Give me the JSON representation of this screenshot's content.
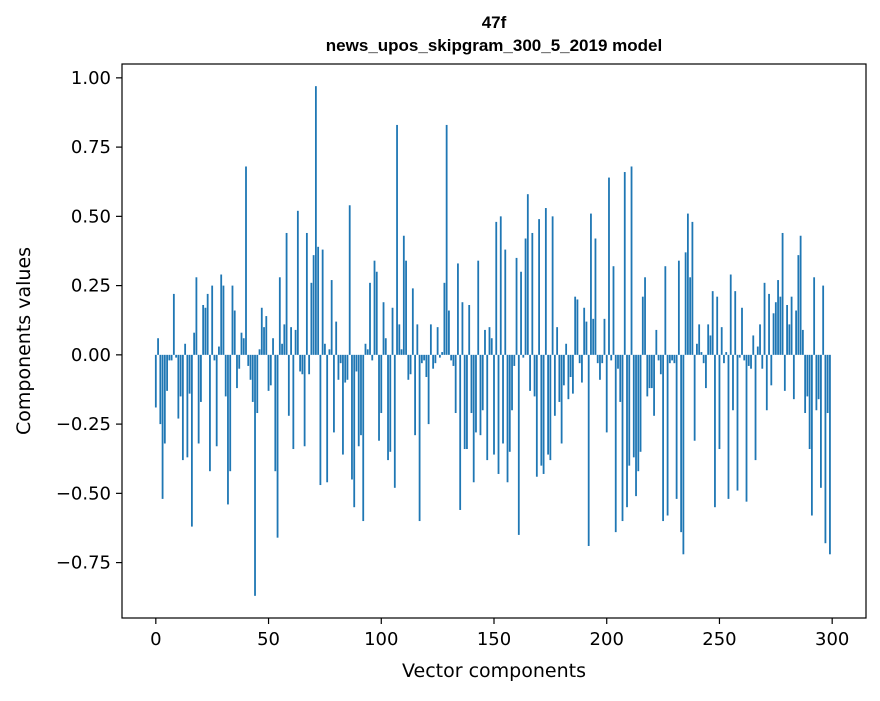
{
  "chart_data": {
    "type": "bar",
    "title": "47f",
    "subtitle": "news_upos_skipgram_300_5_2019 model",
    "xlabel": "Vector components",
    "ylabel": "Components values",
    "xlim": [
      -15,
      315
    ],
    "ylim": [
      -0.95,
      1.05
    ],
    "xticks": [
      0,
      50,
      100,
      150,
      200,
      250,
      300
    ],
    "xtick_labels": [
      "0",
      "50",
      "100",
      "150",
      "200",
      "250",
      "300"
    ],
    "yticks": [
      1.0,
      0.75,
      0.5,
      0.25,
      0.0,
      -0.25,
      -0.5,
      -0.75
    ],
    "ytick_labels": [
      "1.00",
      "0.75",
      "0.50",
      "0.25",
      "0.00",
      "−0.25",
      "−0.50",
      "−0.75"
    ],
    "grid": false,
    "colors": {
      "bar": "#1f77b4",
      "axis": "#000000",
      "background": "#ffffff"
    },
    "x": [
      0,
      1,
      2,
      3,
      4,
      5,
      6,
      7,
      8,
      9,
      10,
      11,
      12,
      13,
      14,
      15,
      16,
      17,
      18,
      19,
      20,
      21,
      22,
      23,
      24,
      25,
      26,
      27,
      28,
      29,
      30,
      31,
      32,
      33,
      34,
      35,
      36,
      37,
      38,
      39,
      40,
      41,
      42,
      43,
      44,
      45,
      46,
      47,
      48,
      49,
      50,
      51,
      52,
      53,
      54,
      55,
      56,
      57,
      58,
      59,
      60,
      61,
      62,
      63,
      64,
      65,
      66,
      67,
      68,
      69,
      70,
      71,
      72,
      73,
      74,
      75,
      76,
      77,
      78,
      79,
      80,
      81,
      82,
      83,
      84,
      85,
      86,
      87,
      88,
      89,
      90,
      91,
      92,
      93,
      94,
      95,
      96,
      97,
      98,
      99,
      100,
      101,
      102,
      103,
      104,
      105,
      106,
      107,
      108,
      109,
      110,
      111,
      112,
      113,
      114,
      115,
      116,
      117,
      118,
      119,
      120,
      121,
      122,
      123,
      124,
      125,
      126,
      127,
      128,
      129,
      130,
      131,
      132,
      133,
      134,
      135,
      136,
      137,
      138,
      139,
      140,
      141,
      142,
      143,
      144,
      145,
      146,
      147,
      148,
      149,
      150,
      151,
      152,
      153,
      154,
      155,
      156,
      157,
      158,
      159,
      160,
      161,
      162,
      163,
      164,
      165,
      166,
      167,
      168,
      169,
      170,
      171,
      172,
      173,
      174,
      175,
      176,
      177,
      178,
      179,
      180,
      181,
      182,
      183,
      184,
      185,
      186,
      187,
      188,
      189,
      190,
      191,
      192,
      193,
      194,
      195,
      196,
      197,
      198,
      199,
      200,
      201,
      202,
      203,
      204,
      205,
      206,
      207,
      208,
      209,
      210,
      211,
      212,
      213,
      214,
      215,
      216,
      217,
      218,
      219,
      220,
      221,
      222,
      223,
      224,
      225,
      226,
      227,
      228,
      229,
      230,
      231,
      232,
      233,
      234,
      235,
      236,
      237,
      238,
      239,
      240,
      241,
      242,
      243,
      244,
      245,
      246,
      247,
      248,
      249,
      250,
      251,
      252,
      253,
      254,
      255,
      256,
      257,
      258,
      259,
      260,
      261,
      262,
      263,
      264,
      265,
      266,
      267,
      268,
      269,
      270,
      271,
      272,
      273,
      274,
      275,
      276,
      277,
      278,
      279,
      280,
      281,
      282,
      283,
      284,
      285,
      286,
      287,
      288,
      289,
      290,
      291,
      292,
      293,
      294,
      295,
      296,
      297,
      298,
      299
    ],
    "values": [
      -0.19,
      0.06,
      -0.25,
      -0.52,
      -0.32,
      -0.13,
      -0.02,
      -0.02,
      0.22,
      -0.01,
      -0.23,
      -0.15,
      -0.38,
      0.04,
      -0.37,
      -0.14,
      -0.62,
      0.08,
      0.28,
      -0.32,
      -0.17,
      0.18,
      0.17,
      0.22,
      -0.42,
      0.25,
      -0.02,
      -0.33,
      0.03,
      0.29,
      0.25,
      -0.15,
      -0.54,
      -0.42,
      0.25,
      0.16,
      -0.12,
      -0.05,
      0.08,
      0.06,
      0.68,
      -0.04,
      -0.09,
      -0.17,
      -0.87,
      -0.21,
      0.02,
      0.17,
      0.1,
      0.14,
      -0.13,
      -0.11,
      0.06,
      -0.42,
      -0.66,
      0.28,
      0.04,
      0.11,
      0.44,
      -0.22,
      0.1,
      -0.34,
      0.09,
      0.52,
      -0.06,
      -0.07,
      -0.33,
      0.44,
      -0.07,
      0.26,
      0.36,
      0.97,
      0.39,
      -0.47,
      0.38,
      0.04,
      -0.46,
      0.02,
      0.27,
      -0.28,
      0.12,
      -0.09,
      -0.03,
      -0.36,
      -0.1,
      -0.09,
      0.54,
      -0.45,
      -0.55,
      -0.06,
      -0.33,
      -0.29,
      -0.6,
      0.04,
      0.02,
      0.26,
      -0.02,
      0.34,
      0.3,
      -0.31,
      -0.21,
      0.19,
      0.06,
      -0.38,
      -0.35,
      0.17,
      -0.48,
      0.83,
      0.11,
      0.02,
      0.43,
      0.34,
      -0.09,
      -0.07,
      0.24,
      -0.29,
      0.11,
      -0.6,
      -0.03,
      -0.02,
      -0.08,
      -0.25,
      0.11,
      -0.05,
      -0.03,
      0.1,
      -0.01,
      0.01,
      0.26,
      0.83,
      0.16,
      -0.02,
      -0.04,
      -0.21,
      0.33,
      -0.56,
      0.19,
      -0.34,
      -0.34,
      0.18,
      -0.21,
      -0.46,
      -0.28,
      0.34,
      -0.29,
      -0.2,
      0.09,
      -0.38,
      0.1,
      0.06,
      -0.36,
      0.48,
      -0.43,
      0.5,
      -0.32,
      0.38,
      -0.46,
      -0.35,
      -0.2,
      -0.04,
      0.35,
      -0.65,
      0.3,
      -0.01,
      0.42,
      0.58,
      -0.13,
      0.44,
      -0.15,
      -0.44,
      0.49,
      -0.4,
      -0.43,
      0.53,
      -0.36,
      -0.38,
      0.5,
      -0.22,
      0.1,
      -0.17,
      -0.32,
      -0.11,
      0.04,
      -0.16,
      -0.08,
      -0.14,
      0.21,
      0.2,
      -0.03,
      -0.1,
      0.17,
      0.12,
      -0.69,
      0.51,
      0.13,
      0.42,
      -0.03,
      -0.09,
      -0.03,
      0.13,
      -0.28,
      0.64,
      -0.02,
      0.32,
      -0.64,
      -0.05,
      -0.17,
      -0.6,
      0.66,
      -0.55,
      -0.4,
      0.68,
      -0.37,
      -0.51,
      -0.42,
      -0.35,
      0.21,
      0.28,
      -0.15,
      -0.12,
      -0.12,
      -0.22,
      0.09,
      -0.02,
      -0.07,
      -0.6,
      0.32,
      -0.58,
      -0.03,
      -0.02,
      -0.03,
      -0.52,
      0.34,
      -0.64,
      -0.72,
      0.37,
      0.51,
      0.28,
      0.48,
      -0.31,
      0.04,
      0.11,
      0.01,
      -0.03,
      -0.12,
      0.11,
      0.07,
      0.23,
      -0.55,
      0.21,
      -0.34,
      0.1,
      -0.03,
      0.01,
      -0.52,
      0.29,
      -0.2,
      0.23,
      -0.49,
      -0.01,
      0.17,
      -0.02,
      -0.53,
      -0.04,
      -0.05,
      0.07,
      -0.38,
      0.03,
      0.11,
      -0.05,
      0.26,
      -0.2,
      0.22,
      -0.11,
      0.15,
      0.19,
      0.27,
      0.21,
      0.44,
      -0.13,
      0.18,
      0.11,
      0.21,
      -0.16,
      0.16,
      0.36,
      0.43,
      0.09,
      -0.21,
      -0.15,
      -0.34,
      -0.58,
      0.28,
      -0.2,
      -0.16,
      -0.48,
      0.25,
      -0.68,
      -0.21,
      -0.72
    ]
  }
}
